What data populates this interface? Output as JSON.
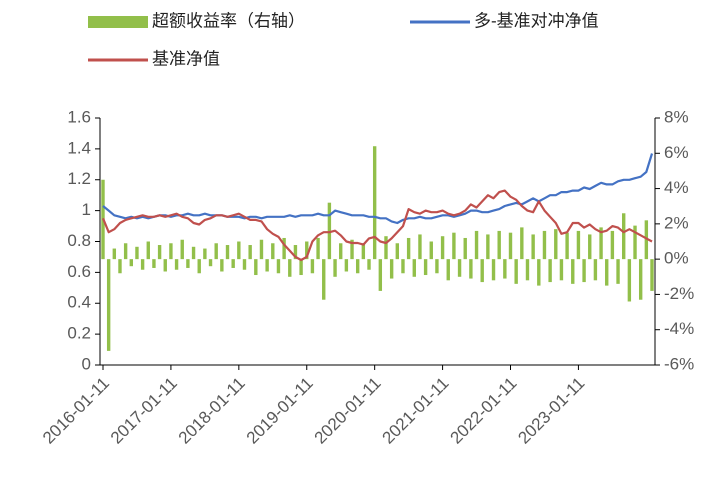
{
  "chart_data": {
    "type": "combo",
    "categories": [
      "2016-01-11",
      null,
      null,
      null,
      null,
      null,
      null,
      null,
      null,
      null,
      null,
      null,
      "2017-01-11",
      null,
      null,
      null,
      null,
      null,
      null,
      null,
      null,
      null,
      null,
      null,
      "2018-01-11",
      null,
      null,
      null,
      null,
      null,
      null,
      null,
      null,
      null,
      null,
      null,
      "2019-01-11",
      null,
      null,
      null,
      null,
      null,
      null,
      null,
      null,
      null,
      null,
      null,
      "2020-01-11",
      null,
      null,
      null,
      null,
      null,
      null,
      null,
      null,
      null,
      null,
      null,
      "2021-01-11",
      null,
      null,
      null,
      null,
      null,
      null,
      null,
      null,
      null,
      null,
      null,
      "2022-01-11",
      null,
      null,
      null,
      null,
      null,
      null,
      null,
      null,
      null,
      null,
      null,
      "2023-01-11",
      null,
      null,
      null,
      null,
      null,
      null,
      null,
      null,
      null,
      null,
      null,
      null,
      null
    ],
    "series": [
      {
        "name": "超额收益率（右轴）",
        "type": "bar",
        "axis": "y2",
        "color": "#92bf4a",
        "values": [
          4.5,
          -5.2,
          0.6,
          -0.8,
          0.9,
          -0.4,
          0.7,
          -0.6,
          1.0,
          -0.5,
          0.8,
          -0.7,
          0.9,
          -0.6,
          1.1,
          -0.5,
          0.7,
          -0.8,
          0.6,
          -0.4,
          0.9,
          -0.7,
          0.8,
          -0.5,
          1.0,
          -0.6,
          0.8,
          -0.9,
          1.1,
          -0.7,
          0.9,
          -0.8,
          1.2,
          -1.0,
          0.8,
          -0.9,
          1.0,
          -0.8,
          1.2,
          -2.3,
          3.2,
          -1.0,
          0.9,
          -0.7,
          1.1,
          -0.8,
          0.9,
          -0.6,
          6.4,
          -1.8,
          1.3,
          -1.1,
          0.9,
          -0.8,
          1.2,
          -1.0,
          1.4,
          -0.9,
          1.0,
          -0.8,
          1.3,
          -1.2,
          1.5,
          -1.0,
          1.2,
          -1.1,
          1.6,
          -1.3,
          1.4,
          -1.2,
          1.6,
          -1.1,
          1.5,
          -1.4,
          1.8,
          -1.2,
          1.4,
          -1.5,
          1.6,
          -1.3,
          1.7,
          -1.2,
          1.5,
          -1.4,
          1.6,
          -1.3,
          1.4,
          -1.2,
          1.8,
          -1.5,
          1.6,
          -1.4,
          2.6,
          -2.4,
          1.9,
          -2.3,
          2.2,
          -1.8
        ]
      },
      {
        "name": "多-基准对冲净值",
        "type": "line",
        "color": "#4472c4",
        "values": [
          1.03,
          1.0,
          0.97,
          0.96,
          0.95,
          0.96,
          0.95,
          0.96,
          0.95,
          0.96,
          0.97,
          0.97,
          0.96,
          0.97,
          0.97,
          0.98,
          0.97,
          0.97,
          0.98,
          0.97,
          0.97,
          0.97,
          0.96,
          0.96,
          0.96,
          0.95,
          0.96,
          0.96,
          0.95,
          0.96,
          0.96,
          0.96,
          0.96,
          0.97,
          0.96,
          0.97,
          0.97,
          0.97,
          0.98,
          0.97,
          0.97,
          1.0,
          0.99,
          0.98,
          0.97,
          0.97,
          0.97,
          0.96,
          0.96,
          0.95,
          0.95,
          0.93,
          0.92,
          0.94,
          0.95,
          0.95,
          0.96,
          0.95,
          0.95,
          0.96,
          0.97,
          0.97,
          0.96,
          0.97,
          0.98,
          1.0,
          1.0,
          0.99,
          0.99,
          1.0,
          1.01,
          1.03,
          1.04,
          1.05,
          1.04,
          1.06,
          1.08,
          1.06,
          1.08,
          1.1,
          1.1,
          1.12,
          1.12,
          1.13,
          1.13,
          1.15,
          1.14,
          1.16,
          1.18,
          1.17,
          1.17,
          1.19,
          1.2,
          1.2,
          1.21,
          1.22,
          1.25,
          1.37
        ]
      },
      {
        "name": "基准净值",
        "type": "line",
        "color": "#c0504d",
        "values": [
          0.95,
          0.86,
          0.88,
          0.92,
          0.94,
          0.95,
          0.96,
          0.97,
          0.96,
          0.96,
          0.97,
          0.96,
          0.97,
          0.98,
          0.96,
          0.95,
          0.92,
          0.91,
          0.94,
          0.95,
          0.97,
          0.97,
          0.96,
          0.97,
          0.98,
          0.96,
          0.94,
          0.94,
          0.93,
          0.88,
          0.85,
          0.83,
          0.78,
          0.74,
          0.7,
          0.68,
          0.7,
          0.8,
          0.84,
          0.86,
          0.86,
          0.87,
          0.84,
          0.8,
          0.79,
          0.79,
          0.78,
          0.82,
          0.83,
          0.8,
          0.79,
          0.82,
          0.86,
          0.9,
          1.01,
          0.99,
          0.98,
          1.0,
          0.99,
          0.99,
          1.0,
          0.98,
          0.97,
          0.98,
          1.0,
          1.04,
          1.02,
          1.06,
          1.1,
          1.08,
          1.12,
          1.13,
          1.09,
          1.07,
          1.03,
          1.0,
          0.99,
          1.06,
          1.0,
          0.96,
          0.92,
          0.85,
          0.86,
          0.92,
          0.92,
          0.89,
          0.91,
          0.88,
          0.86,
          0.87,
          0.9,
          0.89,
          0.86,
          0.88,
          0.86,
          0.84,
          0.82,
          0.8
        ]
      }
    ],
    "ylim": [
      0,
      1.6
    ],
    "yticks": [
      0,
      0.2,
      0.4,
      0.6,
      0.8,
      1,
      1.2,
      1.4,
      1.6
    ],
    "y2lim": [
      -6,
      8
    ],
    "y2ticks": [
      {
        "value": -6,
        "label": "-6%"
      },
      {
        "value": -4,
        "label": "-4%"
      },
      {
        "value": -2,
        "label": "-2%"
      },
      {
        "value": 0,
        "label": "0%"
      },
      {
        "value": 2,
        "label": "2%"
      },
      {
        "value": 4,
        "label": "4%"
      },
      {
        "value": 6,
        "label": "6%"
      },
      {
        "value": 8,
        "label": "8%"
      }
    ],
    "grid": false,
    "legend": "top"
  }
}
